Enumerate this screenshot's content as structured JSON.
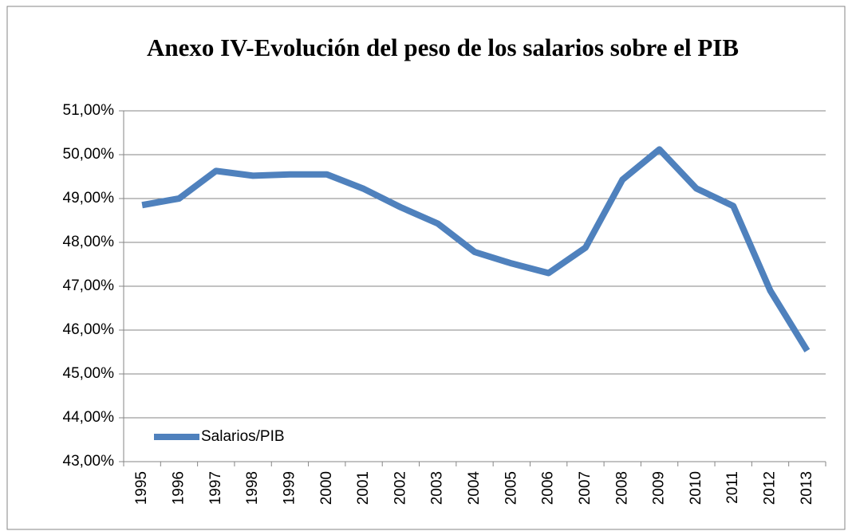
{
  "chart_data": {
    "type": "line",
    "title": "Anexo IV-Evolución del peso de los salarios sobre el PIB",
    "categories": [
      "1995",
      "1996",
      "1997",
      "1998",
      "1999",
      "2000",
      "2001",
      "2002",
      "2003",
      "2004",
      "2005",
      "2006",
      "2007",
      "2008",
      "2009",
      "2010",
      "2011",
      "2012",
      "2013"
    ],
    "series": [
      {
        "name": "Salarios/PIB",
        "color": "#4f81bd",
        "values": [
          48.85,
          49.0,
          49.63,
          49.52,
          49.55,
          49.55,
          49.22,
          48.8,
          48.43,
          47.78,
          47.52,
          47.3,
          47.88,
          49.43,
          50.12,
          49.23,
          48.83,
          46.9,
          45.53
        ]
      }
    ],
    "ylim": [
      43,
      51
    ],
    "yticks": [
      {
        "value": 43,
        "label": "43,00%"
      },
      {
        "value": 44,
        "label": "44,00%"
      },
      {
        "value": 45,
        "label": "45,00%"
      },
      {
        "value": 46,
        "label": "46,00%"
      },
      {
        "value": 47,
        "label": "47,00%"
      },
      {
        "value": 48,
        "label": "48,00%"
      },
      {
        "value": 49,
        "label": "49,00%"
      },
      {
        "value": 50,
        "label": "50,00%"
      },
      {
        "value": 51,
        "label": "51,00%"
      }
    ],
    "grid": true,
    "legend": "lower-left"
  }
}
